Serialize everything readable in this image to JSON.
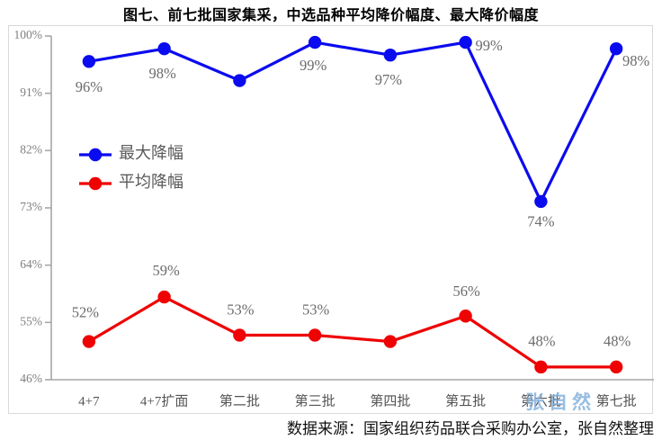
{
  "title": "图七、前七批国家集采，中选品种平均降价幅度、最大降价幅度",
  "source_note": "数据来源：国家组织药品联合采购办公室，张自然整理",
  "watermark": "张自然",
  "colors": {
    "series_max": "#0b0bef",
    "series_avg": "#ef0202",
    "data_label": "#6b6b6b",
    "y_tick_label": "#7f7f7f",
    "x_tick_label": "#545454",
    "legend_text": "#595959",
    "axis_line": "#a6a6a6",
    "frame_border": "#d9d9d9",
    "watermark_blue": "#7faedc",
    "title_text": "#000000"
  },
  "chart_data": {
    "type": "line",
    "categories": [
      "4+7",
      "4+7扩面",
      "第二批",
      "第三批",
      "第四批",
      "第五批",
      "第六批",
      "第七批"
    ],
    "series": [
      {
        "name": "最大降幅",
        "color": "#0b0bef",
        "values": [
          96,
          98,
          93,
          99,
          97,
          99,
          74,
          98
        ],
        "labels": [
          "96%",
          "98%",
          "",
          "99%",
          "97%",
          "99%",
          "74%",
          "98%"
        ],
        "label_offsets": [
          [
            0,
            30
          ],
          [
            -2,
            29
          ],
          [
            0,
            0
          ],
          [
            -2,
            27
          ],
          [
            -2,
            29
          ],
          [
            26,
            5
          ],
          [
            0,
            24
          ],
          [
            22,
            15
          ]
        ]
      },
      {
        "name": "平均降幅",
        "color": "#ef0202",
        "values": [
          52,
          59,
          53,
          53,
          52,
          56,
          48,
          48
        ],
        "labels": [
          "52%",
          "59%",
          "53%",
          "53%",
          "",
          "56%",
          "48%",
          "48%"
        ],
        "label_offsets": [
          [
            -4,
            -31
          ],
          [
            2,
            -28
          ],
          [
            1,
            -27
          ],
          [
            1,
            -27
          ],
          [
            0,
            0
          ],
          [
            1,
            -26
          ],
          [
            1,
            -27
          ],
          [
            1,
            -27
          ]
        ]
      }
    ],
    "yticks": [
      "100%",
      "91%",
      "82%",
      "73%",
      "64%",
      "55%",
      "46%"
    ],
    "ytick_values": [
      100,
      91,
      82,
      73,
      64,
      55,
      46
    ],
    "ylim": [
      46,
      100
    ],
    "xlabel": "",
    "ylabel": "",
    "grid": false,
    "legend": [
      "最大降幅",
      "平均降幅"
    ],
    "legend_position": "inside-upper-left"
  }
}
